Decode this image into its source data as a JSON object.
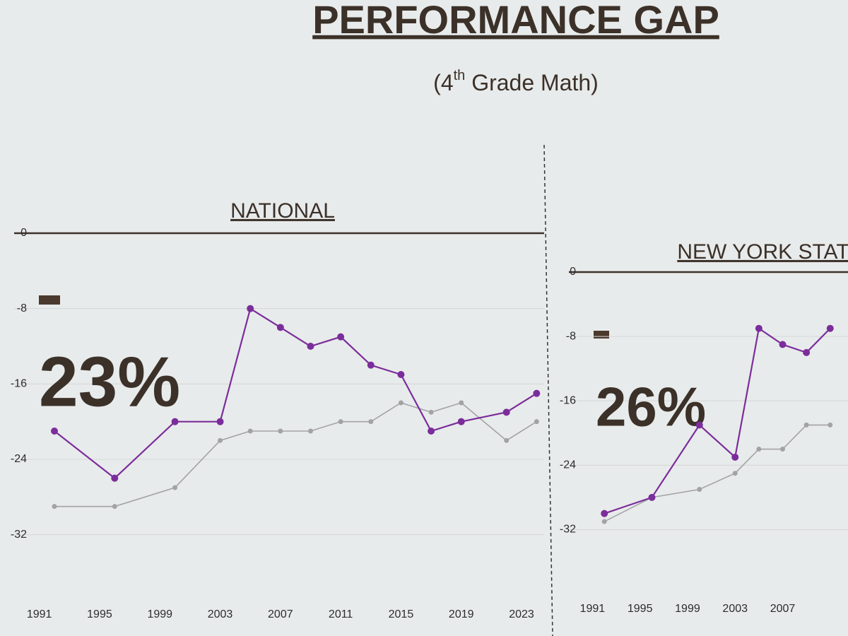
{
  "title": "PERFORMANCE GAP",
  "subtitle": {
    "open": "(4",
    "sup": "th",
    "rest": " Grade Math)"
  },
  "chart_data": [
    {
      "type": "line",
      "title": "NATIONAL",
      "annotation": "23%",
      "x": [
        1992,
        1996,
        2000,
        2003,
        2005,
        2007,
        2009,
        2011,
        2013,
        2015,
        2017,
        2019,
        2022,
        2024
      ],
      "series": [
        {
          "color": "#7b2d9b",
          "values": [
            -21,
            -26,
            -20,
            -20,
            -8,
            -10,
            -12,
            -11,
            -14,
            -15,
            -21,
            -20,
            -19,
            -17
          ]
        },
        {
          "color": "#a3a3a6",
          "values": [
            -29,
            -29,
            -27,
            -22,
            -21,
            -21,
            -21,
            -20,
            -20,
            -18,
            -19,
            -18,
            -22,
            -20
          ]
        }
      ],
      "xlim": [
        1990.5,
        2024.5
      ],
      "xticks": [
        1991,
        1995,
        1999,
        2003,
        2007,
        2011,
        2015,
        2019,
        2023
      ],
      "ylim": [
        -36,
        0
      ],
      "yticks": [
        0,
        -8,
        -16,
        -24,
        -32
      ],
      "grid": true
    },
    {
      "type": "line",
      "title": "NEW YORK STATE",
      "annotation": "26%",
      "x": [
        1992,
        1996,
        2000,
        2003,
        2005,
        2007,
        2009,
        2011
      ],
      "series": [
        {
          "color": "#7b2d9b",
          "values": [
            -30,
            -28,
            -19,
            -23,
            -7,
            -9,
            -10,
            -7
          ]
        },
        {
          "color": "#a3a3a6",
          "values": [
            -31,
            -28,
            -27,
            -25,
            -22,
            -22,
            -19,
            -19
          ]
        }
      ],
      "xlim": [
        1990.5,
        2012.5
      ],
      "xticks": [
        1991,
        1995,
        1999,
        2003,
        2007
      ],
      "ylim": [
        -36,
        0
      ],
      "yticks": [
        0,
        -8,
        -16,
        -24,
        -32
      ],
      "grid": true
    }
  ]
}
